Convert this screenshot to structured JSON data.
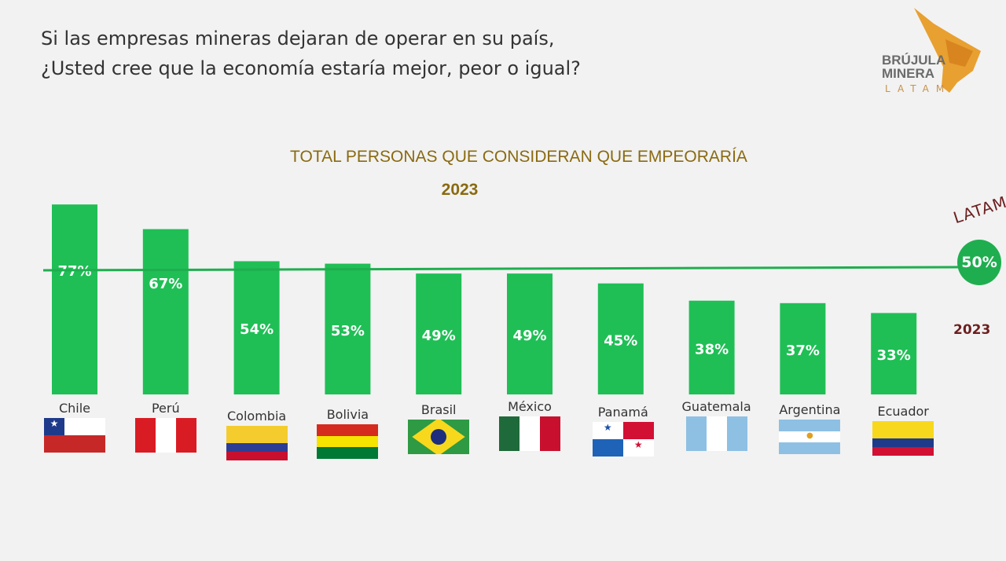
{
  "question": "Si las empresas mineras dejaran de operar en su país,\n¿Usted cree que la economía estaría mejor, peor o igual?",
  "logo": {
    "line1": "BRÚJULA",
    "line2": "MINERA",
    "line3": "LATAM"
  },
  "reference": {
    "label": "LATAM",
    "value_label": "50%",
    "year": "2023",
    "value": 50
  },
  "colors": {
    "bar": "#1fbf55",
    "line": "#1fae4f",
    "title": "#8a6a10"
  },
  "chart_data": {
    "type": "bar",
    "title": "TOTAL PERSONAS QUE CONSIDERAN QUE  EMPEORARÍA",
    "subtitle": "2023",
    "categories": [
      "Chile",
      "Perú",
      "Colombia",
      "Bolivia",
      "Brasil",
      "México",
      "Panamá",
      "Guatemala",
      "Argentina",
      "Ecuador"
    ],
    "values": [
      77,
      67,
      54,
      53,
      49,
      49,
      45,
      38,
      37,
      33
    ],
    "data_labels": [
      "77%",
      "67%",
      "54%",
      "53%",
      "49%",
      "49%",
      "45%",
      "38%",
      "37%",
      "33%"
    ],
    "ylim": [
      0,
      100
    ],
    "reference_line": 50,
    "grid": false
  }
}
